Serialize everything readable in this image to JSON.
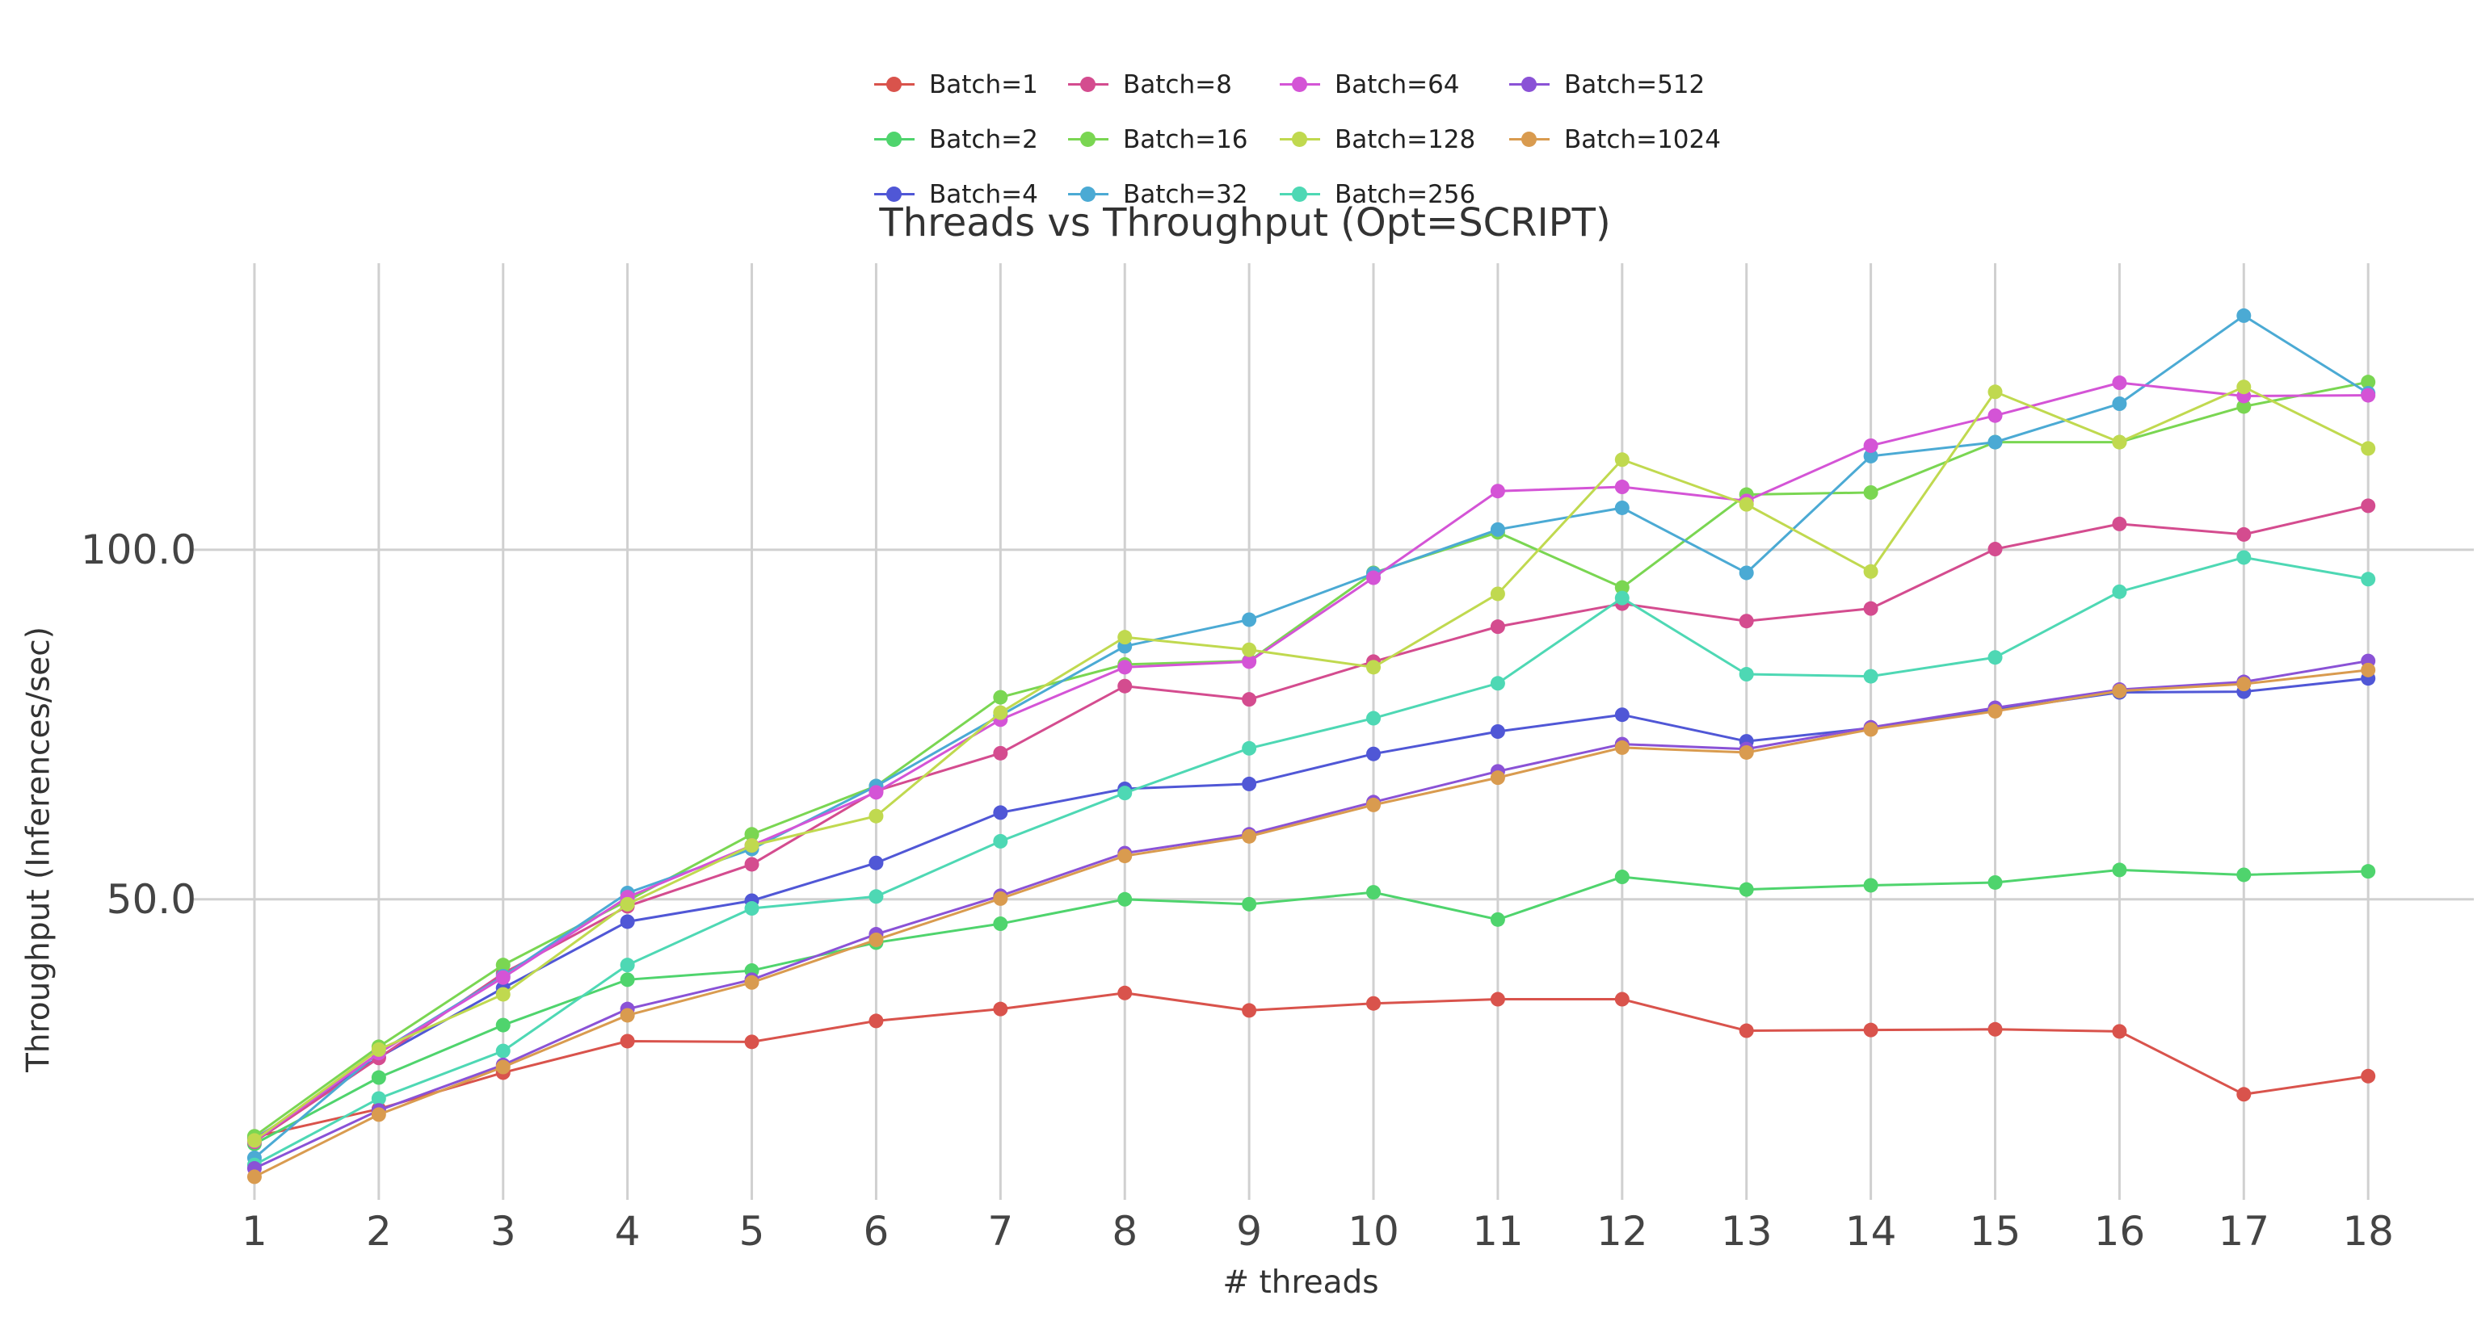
{
  "chart_data": {
    "type": "line",
    "title": "Threads vs Throughput (Opt=SCRIPT)",
    "xlabel": "# threads",
    "ylabel": "Throughput (Inferences/sec)",
    "x": [
      1,
      2,
      3,
      4,
      5,
      6,
      7,
      8,
      9,
      10,
      11,
      12,
      13,
      14,
      15,
      16,
      17,
      18
    ],
    "x_tick_labels": [
      "1",
      "2",
      "3",
      "4",
      "5",
      "6",
      "7",
      "8",
      "9",
      "10",
      "11",
      "12",
      "13",
      "14",
      "15",
      "16",
      "17",
      "18"
    ],
    "y_ticks": [
      50.0,
      100.0
    ],
    "y_tick_labels": [
      "50.0",
      "100.0"
    ],
    "xlim": [
      0.5,
      18.85
    ],
    "ylim": [
      7,
      141
    ],
    "grid": true,
    "legend_position": "top-center",
    "series": [
      {
        "name": "Batch=1",
        "color": "#d9534c",
        "values": [
          16.0,
          20.0,
          25.2,
          29.7,
          29.6,
          32.6,
          34.3,
          36.6,
          34.1,
          35.1,
          35.7,
          35.7,
          31.2,
          31.3,
          31.4,
          31.1,
          22.1,
          24.7
        ]
      },
      {
        "name": "Batch=2",
        "color": "#4fd46d",
        "values": [
          15.0,
          24.5,
          32.0,
          38.5,
          39.8,
          43.8,
          46.5,
          50.0,
          49.3,
          51.0,
          47.1,
          53.2,
          51.4,
          52.0,
          52.4,
          54.2,
          53.5,
          54.0
        ]
      },
      {
        "name": "Batch=4",
        "color": "#5057d6",
        "values": [
          15.7,
          27.4,
          37.3,
          46.8,
          49.8,
          55.2,
          62.4,
          65.8,
          66.5,
          70.8,
          74.0,
          76.4,
          72.6,
          74.5,
          77.1,
          79.6,
          79.7,
          81.6
        ]
      },
      {
        "name": "Batch=8",
        "color": "#d44c8f",
        "values": [
          15.3,
          27.3,
          39.4,
          49.0,
          55.0,
          65.5,
          70.9,
          80.5,
          78.6,
          84.0,
          89.0,
          92.3,
          89.8,
          91.6,
          100.1,
          103.7,
          102.2,
          106.3
        ]
      },
      {
        "name": "Batch=16",
        "color": "#7ad652",
        "values": [
          16.1,
          28.9,
          40.6,
          49.8,
          59.3,
          66.2,
          78.9,
          83.6,
          84.1,
          96.7,
          102.5,
          94.6,
          107.9,
          108.2,
          115.4,
          115.4,
          120.5,
          124.0
        ]
      },
      {
        "name": "Batch=32",
        "color": "#4baad4",
        "values": [
          13.0,
          28.1,
          39.0,
          50.9,
          57.2,
          66.2,
          76.3,
          86.2,
          90.0,
          96.6,
          102.9,
          106.0,
          96.7,
          113.4,
          115.4,
          120.9,
          133.5,
          122.4
        ]
      },
      {
        "name": "Batch=64",
        "color": "#d454d6",
        "values": [
          15.4,
          28.0,
          38.8,
          50.3,
          57.7,
          65.3,
          75.7,
          83.2,
          84.0,
          96.0,
          108.4,
          109.0,
          107.0,
          114.9,
          119.2,
          123.9,
          122.0,
          122.1
        ]
      },
      {
        "name": "Batch=128",
        "color": "#c0d94f",
        "values": [
          15.5,
          28.5,
          36.4,
          49.3,
          57.7,
          61.9,
          76.7,
          87.5,
          85.7,
          83.2,
          93.7,
          112.9,
          106.5,
          96.9,
          122.6,
          115.4,
          123.3,
          114.5
        ]
      },
      {
        "name": "Batch=256",
        "color": "#4ed8b4",
        "values": [
          12.0,
          21.5,
          28.3,
          40.6,
          48.7,
          50.4,
          58.3,
          65.2,
          71.6,
          75.9,
          80.9,
          93.1,
          82.2,
          81.9,
          84.6,
          94.0,
          98.9,
          95.8
        ]
      },
      {
        "name": "Batch=512",
        "color": "#8a52d6",
        "values": [
          11.5,
          19.8,
          26.3,
          34.3,
          38.5,
          45.0,
          50.5,
          56.6,
          59.3,
          63.9,
          68.3,
          72.2,
          71.5,
          74.6,
          77.4,
          80.0,
          81.1,
          84.1
        ]
      },
      {
        "name": "Batch=1024",
        "color": "#d99b4f",
        "values": [
          10.3,
          19.2,
          26.0,
          33.4,
          38.1,
          44.2,
          50.1,
          56.2,
          59.0,
          63.5,
          67.4,
          71.7,
          71.0,
          74.3,
          76.9,
          79.8,
          80.8,
          82.8
        ]
      }
    ]
  }
}
